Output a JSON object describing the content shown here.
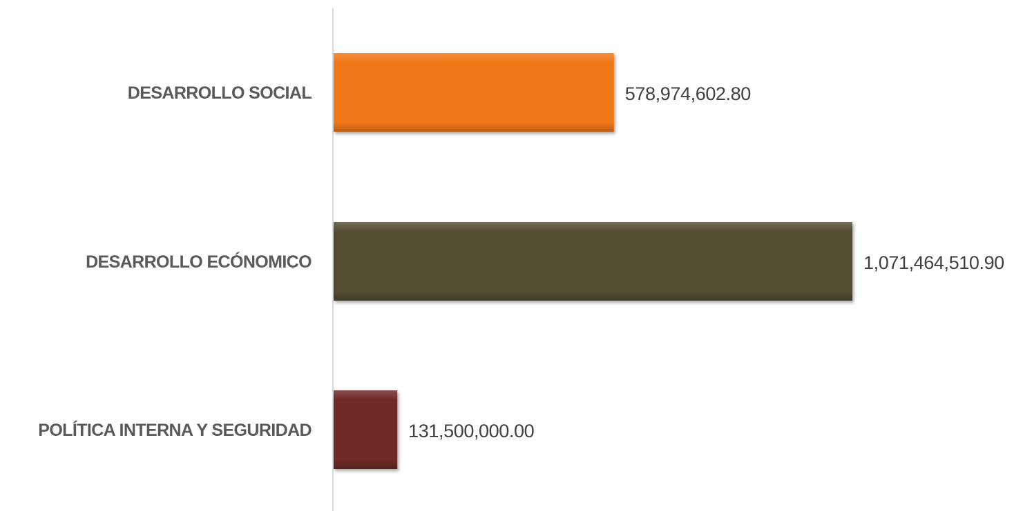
{
  "chart_data": {
    "type": "bar",
    "orientation": "horizontal",
    "categories": [
      "DESARROLLO SOCIAL",
      "DESARROLLO ECÓNOMICO",
      "POLÍTICA INTERNA Y SEGURIDAD"
    ],
    "values": [
      578974602.8,
      1071464510.9,
      131500000.0
    ],
    "value_labels": [
      "578,974,602.80",
      "1,071,464,510.90",
      "131,500,000.00"
    ],
    "bar_colors": [
      "#f07814",
      "#524d33",
      "#6e2a28"
    ],
    "title": "",
    "xlabel": "",
    "ylabel": "",
    "xlim": [
      0,
      1071464510.9
    ],
    "grid": false,
    "legend": "none"
  }
}
